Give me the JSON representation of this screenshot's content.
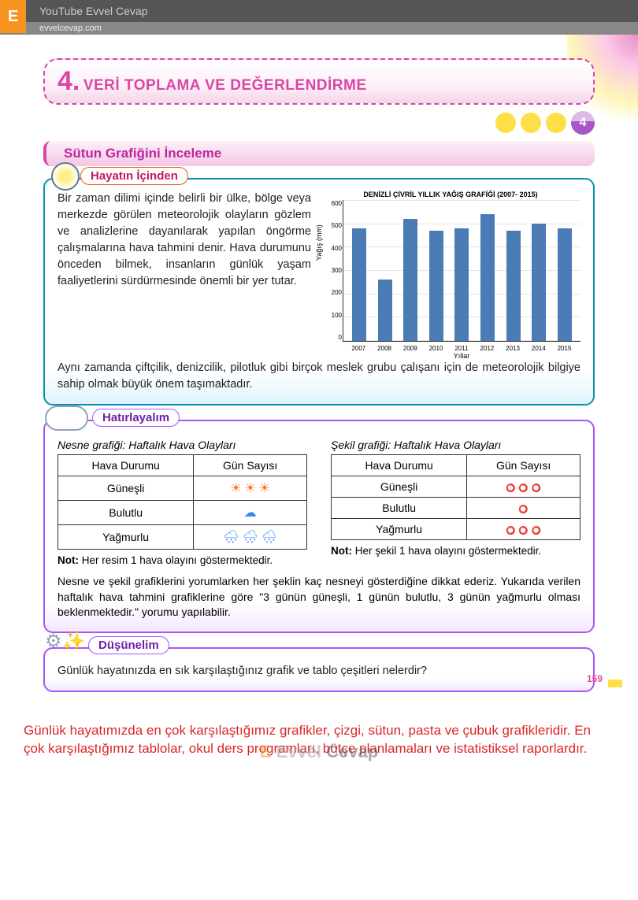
{
  "header": {
    "logo": "E",
    "youtube": "YouTube Evvel Cevap",
    "site": "evvelcevap.com"
  },
  "unit": {
    "number": "4.",
    "title": "VERİ TOPLAMA VE DEĞERLENDİRME",
    "badge": "4"
  },
  "section": {
    "title": "Sütun Grafiğini İnceleme"
  },
  "life": {
    "label": "Hayatın İçinden",
    "text1": "Bir zaman dilimi içinde belirli bir ülke, bölge veya merkezde görülen meteorolojik olayların gözlem ve analizlerine dayanılarak yapılan öngörme çalışmalarına hava tahmini denir. Hava durumunu önceden bilmek, insanların günlük yaşam faaliyetlerini sürdürmesinde önemli bir yer tutar.",
    "text2": "Aynı zamanda çiftçilik, denizcilik, pilotluk gibi birçok meslek grubu çalışanı için de meteorolojik bilgiye sahip olmak büyük önem taşımaktadır."
  },
  "chart": {
    "type": "bar",
    "title": "DENİZLİ ÇİVRİL YILLIK YAĞIŞ GRAFİĞİ (2007- 2015)",
    "ylabel": "Yağış (mm)",
    "xlabel": "Yıllar",
    "ylim": [
      0,
      600
    ],
    "ytick_step": 100,
    "yticks": [
      "600",
      "500",
      "400",
      "300",
      "200",
      "100",
      "0"
    ],
    "categories": [
      "2007",
      "2008",
      "2009",
      "2010",
      "2011",
      "2012",
      "2013",
      "2014",
      "2015"
    ],
    "values": [
      480,
      260,
      520,
      470,
      480,
      540,
      470,
      500,
      480
    ],
    "bar_color": "#4a7bb5",
    "grid_color": "#e5e5e5",
    "background_color": "#ffffff"
  },
  "remember": {
    "label": "Hatırlayalım",
    "table1_caption": "Nesne grafiği: Haftalık Hava Olayları",
    "table2_caption": "Şekil grafiği: Haftalık Hava Olayları",
    "col1": "Hava Durumu",
    "col2": "Gün Sayısı",
    "rows": [
      {
        "label": "Güneşli",
        "count": 3,
        "icon": "☀",
        "class": "sun"
      },
      {
        "label": "Bulutlu",
        "count": 1,
        "icon": "☁",
        "class": "rain"
      },
      {
        "label": "Yağmurlu",
        "count": 3,
        "icon": "🌧",
        "class": "rain"
      }
    ],
    "note1": "Not: Her resim 1 hava olayını göstermektedir.",
    "note2": "Not: Her şekil 1 hava olayını göstermektedir.",
    "note_bold": "Not:",
    "note1_rest": " Her resim 1 hava olayını göstermektedir.",
    "note2_rest": " Her şekil 1 hava olayını göstermektedir.",
    "explain": "Nesne ve şekil grafiklerini yorumlarken her şeklin kaç nesneyi gösterdiğine dikkat ederiz. Yukarıda verilen haftalık hava tahmini grafiklerine göre \"3 günün güneşli, 1 günün bulutlu, 3 günün yağmurlu olması beklenmektedir.\" yorumu yapılabilir."
  },
  "think": {
    "label": "Düşünelim",
    "question": "Günlük hayatınızda en sık karşılaştığınız grafik ve tablo çeşitleri nelerdir?"
  },
  "answer": "Günlük hayatımızda en çok karşılaştığımız grafikler, çizgi, sütun, pasta ve çubuk grafikleridir. En çok karşılaştığımız tablolar, okul ders programları, bütçe planlamaları ve istatistiksel raporlardır.",
  "pagenum": "159",
  "footer_wm": {
    "a": "Evvel",
    "b": "Cevap"
  }
}
